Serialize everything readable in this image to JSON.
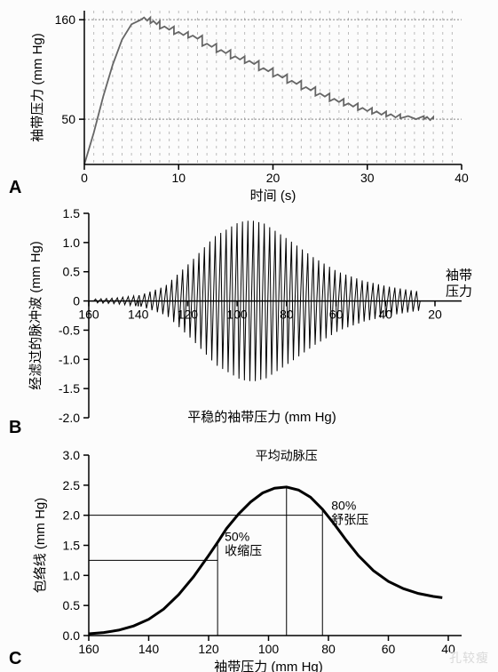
{
  "panelA": {
    "label": "A",
    "type": "line",
    "xlabel": "时间 (s)",
    "ylabel": "袖带压力 (mm Hg)",
    "label_fontsize": 15,
    "tick_fontsize": 14,
    "xlim": [
      0,
      40
    ],
    "ylim": [
      0,
      170
    ],
    "xticks": [
      0,
      10,
      20,
      30,
      40
    ],
    "yticks": [
      50,
      160
    ],
    "hgrid": [
      50,
      160
    ],
    "curve_color": "#666666",
    "background_color": "#ffffff",
    "grid_color": "#bbbbbb",
    "vgrid_count": 40,
    "inflation": [
      [
        0,
        0
      ],
      [
        1,
        35
      ],
      [
        2,
        75
      ],
      [
        3,
        110
      ],
      [
        4,
        138
      ],
      [
        5,
        155
      ],
      [
        6,
        160
      ]
    ],
    "steps": [
      [
        6,
        160
      ],
      [
        7,
        160
      ],
      [
        7,
        156
      ],
      [
        8,
        156
      ],
      [
        8,
        150
      ],
      [
        9.5,
        150
      ],
      [
        9.5,
        144
      ],
      [
        11,
        144
      ],
      [
        11,
        140
      ],
      [
        12.5,
        140
      ],
      [
        12.5,
        131
      ],
      [
        14,
        131
      ],
      [
        14,
        124
      ],
      [
        15.5,
        124
      ],
      [
        15.5,
        117
      ],
      [
        17,
        117
      ],
      [
        17,
        112
      ],
      [
        18.5,
        112
      ],
      [
        18.5,
        104
      ],
      [
        20,
        104
      ],
      [
        20,
        97
      ],
      [
        21.5,
        97
      ],
      [
        21.5,
        90
      ],
      [
        23,
        90
      ],
      [
        23,
        83
      ],
      [
        24.5,
        83
      ],
      [
        24.5,
        76
      ],
      [
        26,
        76
      ],
      [
        26,
        70
      ],
      [
        27.5,
        70
      ],
      [
        27.5,
        65
      ],
      [
        29,
        65
      ],
      [
        29,
        60
      ],
      [
        30.5,
        60
      ],
      [
        30.5,
        56
      ],
      [
        32,
        56
      ],
      [
        32,
        53
      ],
      [
        33.5,
        53
      ],
      [
        33.5,
        51
      ],
      [
        36,
        51
      ],
      [
        36,
        50
      ],
      [
        37,
        50
      ]
    ],
    "step_osc_amp": 2.5
  },
  "panelB": {
    "label": "B",
    "type": "oscillation",
    "xlabel": "平稳的袖带压力 (mm Hg)",
    "ylabel": "经滤过的脉冲波 (mm Hg)",
    "right_label": "袖带\n压力",
    "label_fontsize": 15,
    "tick_fontsize": 14,
    "xlim": [
      160,
      20
    ],
    "ylim": [
      -2.0,
      1.5
    ],
    "xticks": [
      160,
      140,
      120,
      100,
      80,
      60,
      40,
      20
    ],
    "yticks": [
      -2.0,
      -1.5,
      -1.0,
      -0.5,
      0,
      0.5,
      1.0,
      1.5
    ],
    "curve_color": "#000000",
    "n_pulses": 60,
    "envelope": [
      [
        160,
        0.03
      ],
      [
        150,
        0.05
      ],
      [
        140,
        0.1
      ],
      [
        130,
        0.25
      ],
      [
        120,
        0.65
      ],
      [
        110,
        1.1
      ],
      [
        100,
        1.35
      ],
      [
        95,
        1.38
      ],
      [
        90,
        1.33
      ],
      [
        80,
        1.05
      ],
      [
        70,
        0.75
      ],
      [
        60,
        0.5
      ],
      [
        50,
        0.35
      ],
      [
        40,
        0.25
      ],
      [
        30,
        0.18
      ],
      [
        25,
        0.15
      ]
    ]
  },
  "panelC": {
    "label": "C",
    "type": "envelope",
    "xlabel": "袖带压力 (mm Hg)",
    "ylabel": "包络线 (mm Hg)",
    "label_fontsize": 15,
    "tick_fontsize": 14,
    "xlim": [
      160,
      40
    ],
    "ylim": [
      0,
      3.0
    ],
    "xticks": [
      160,
      140,
      120,
      100,
      80,
      60,
      40
    ],
    "yticks": [
      0,
      0.5,
      1.0,
      1.5,
      2.0,
      2.5,
      3.0
    ],
    "curve_color": "#000000",
    "curve": [
      [
        160,
        0.03
      ],
      [
        155,
        0.05
      ],
      [
        150,
        0.09
      ],
      [
        145,
        0.16
      ],
      [
        140,
        0.27
      ],
      [
        135,
        0.44
      ],
      [
        130,
        0.68
      ],
      [
        125,
        0.98
      ],
      [
        120,
        1.33
      ],
      [
        117,
        1.55
      ],
      [
        114,
        1.78
      ],
      [
        110,
        2.02
      ],
      [
        106,
        2.22
      ],
      [
        102,
        2.37
      ],
      [
        98,
        2.45
      ],
      [
        94,
        2.47
      ],
      [
        90,
        2.42
      ],
      [
        86,
        2.3
      ],
      [
        82,
        2.1
      ],
      [
        78,
        1.85
      ],
      [
        74,
        1.58
      ],
      [
        70,
        1.33
      ],
      [
        65,
        1.08
      ],
      [
        60,
        0.9
      ],
      [
        55,
        0.78
      ],
      [
        50,
        0.7
      ],
      [
        45,
        0.65
      ],
      [
        42,
        0.63
      ]
    ],
    "map_label": "平均动脉压",
    "map_x": 94,
    "sys_label": "50%\n收缩压",
    "sys_x": 117,
    "sys_y": 1.25,
    "dia_label": "80%\n舒张压",
    "dia_x": 82,
    "dia_y": 2.0,
    "annotation_fontsize": 14
  },
  "watermark": "孔较瘦"
}
